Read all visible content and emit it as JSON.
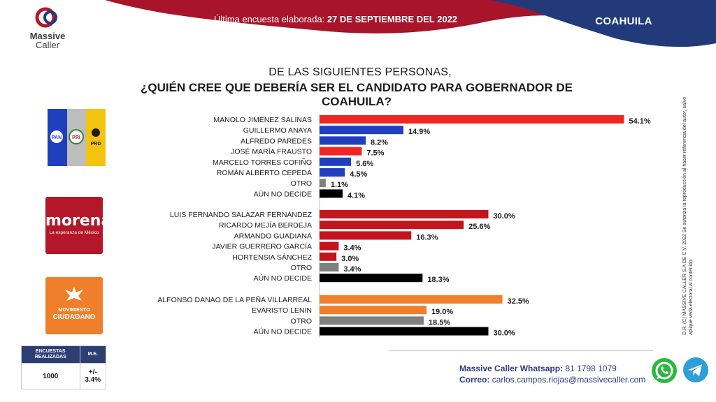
{
  "brand": {
    "line1": "Massive",
    "line2": "Caller"
  },
  "header": {
    "date_prefix": "Última encuesta elaborada:",
    "date_value": "27 DE SEPTIEMBRE DEL 2022",
    "region": "COAHUILA"
  },
  "question": {
    "line1": "DE LAS SIGUIENTES PERSONAS,",
    "line2": "¿QUIÉN CREE QUE DEBERÍA SER EL CANDIDATO PARA GOBERNADOR DE COAHUILA?"
  },
  "side_note": "D.R. (C) MASSIVE CALLER S.A DE C.V. 2022 Se autoriza la reproducción al hacer referencia del autor, salvo aplique veda electoral al contenido.",
  "parties": {
    "coalition": {
      "labels": [
        "PAN",
        "PRI",
        "PRD"
      ]
    },
    "morena": {
      "name": "morena",
      "tagline": "La esperanza de México"
    },
    "mc": {
      "line1": "MOVIMIENTO",
      "line2": "CIUDADANO"
    }
  },
  "colors": {
    "red": "#ee2723",
    "blue": "#1f3fbf",
    "dark_red": "#c4141c",
    "orange": "#f07f2b",
    "gray": "#808080",
    "black": "#000000"
  },
  "chart_data": {
    "type": "bar",
    "orientation": "horizontal",
    "value_suffix": "%",
    "groups": [
      {
        "party": "PRI-PAN-PRD",
        "categories": [
          "MANOLO JIMÉNEZ SALINAS",
          "GUILLERMO ANAYA",
          "ALFREDO PAREDES",
          "JOSÉ MARÍA FRAUSTO",
          "MARCELO TORRES COFIÑO",
          "ROMÁN ALBERTO CEPEDA",
          "OTRO",
          "AÚN NO DECIDE"
        ],
        "values": [
          54.1,
          14.9,
          8.2,
          7.5,
          5.6,
          4.5,
          1.1,
          4.1
        ],
        "colors": [
          "#ee2723",
          "#1f3fbf",
          "#1f3fbf",
          "#ee2723",
          "#1f3fbf",
          "#1f3fbf",
          "#808080",
          "#000000"
        ]
      },
      {
        "party": "MORENA",
        "categories": [
          "LUIS FERNANDO SALAZAR FERNÁNDEZ",
          "RICARDO MEJÍA BERDEJA",
          "ARMANDO GUADIANA",
          "JAVIER GUERRERO GARCÍA",
          "HORTENSIA SÁNCHEZ",
          "OTRO",
          "AÚN NO DECIDE"
        ],
        "values": [
          30.0,
          25.6,
          16.3,
          3.4,
          3.0,
          3.4,
          18.3
        ],
        "colors": [
          "#c4141c",
          "#c4141c",
          "#c4141c",
          "#c4141c",
          "#c4141c",
          "#808080",
          "#000000"
        ]
      },
      {
        "party": "MOVIMIENTO CIUDADANO",
        "categories": [
          "ALFONSO DANAO DE LA PEÑA VILLARREAL",
          "EVARISTO LENIN",
          "OTRO",
          "AÚN NO DECIDE"
        ],
        "values": [
          32.5,
          19.0,
          18.5,
          30.0
        ],
        "colors": [
          "#f07f2b",
          "#f07f2b",
          "#808080",
          "#000000"
        ]
      }
    ]
  },
  "survey": {
    "h1": "ENCUESTAS REALIZADAS",
    "h2": "M.E.",
    "v1": "1000",
    "v2": "+/- 3.4%"
  },
  "footer": {
    "wa_label": "Massive Caller Whatsapp:",
    "wa_value": "81 1798 1079",
    "mail_label": "Correo:",
    "mail_value": "carlos.campos.riojas@massivecaller.com"
  }
}
